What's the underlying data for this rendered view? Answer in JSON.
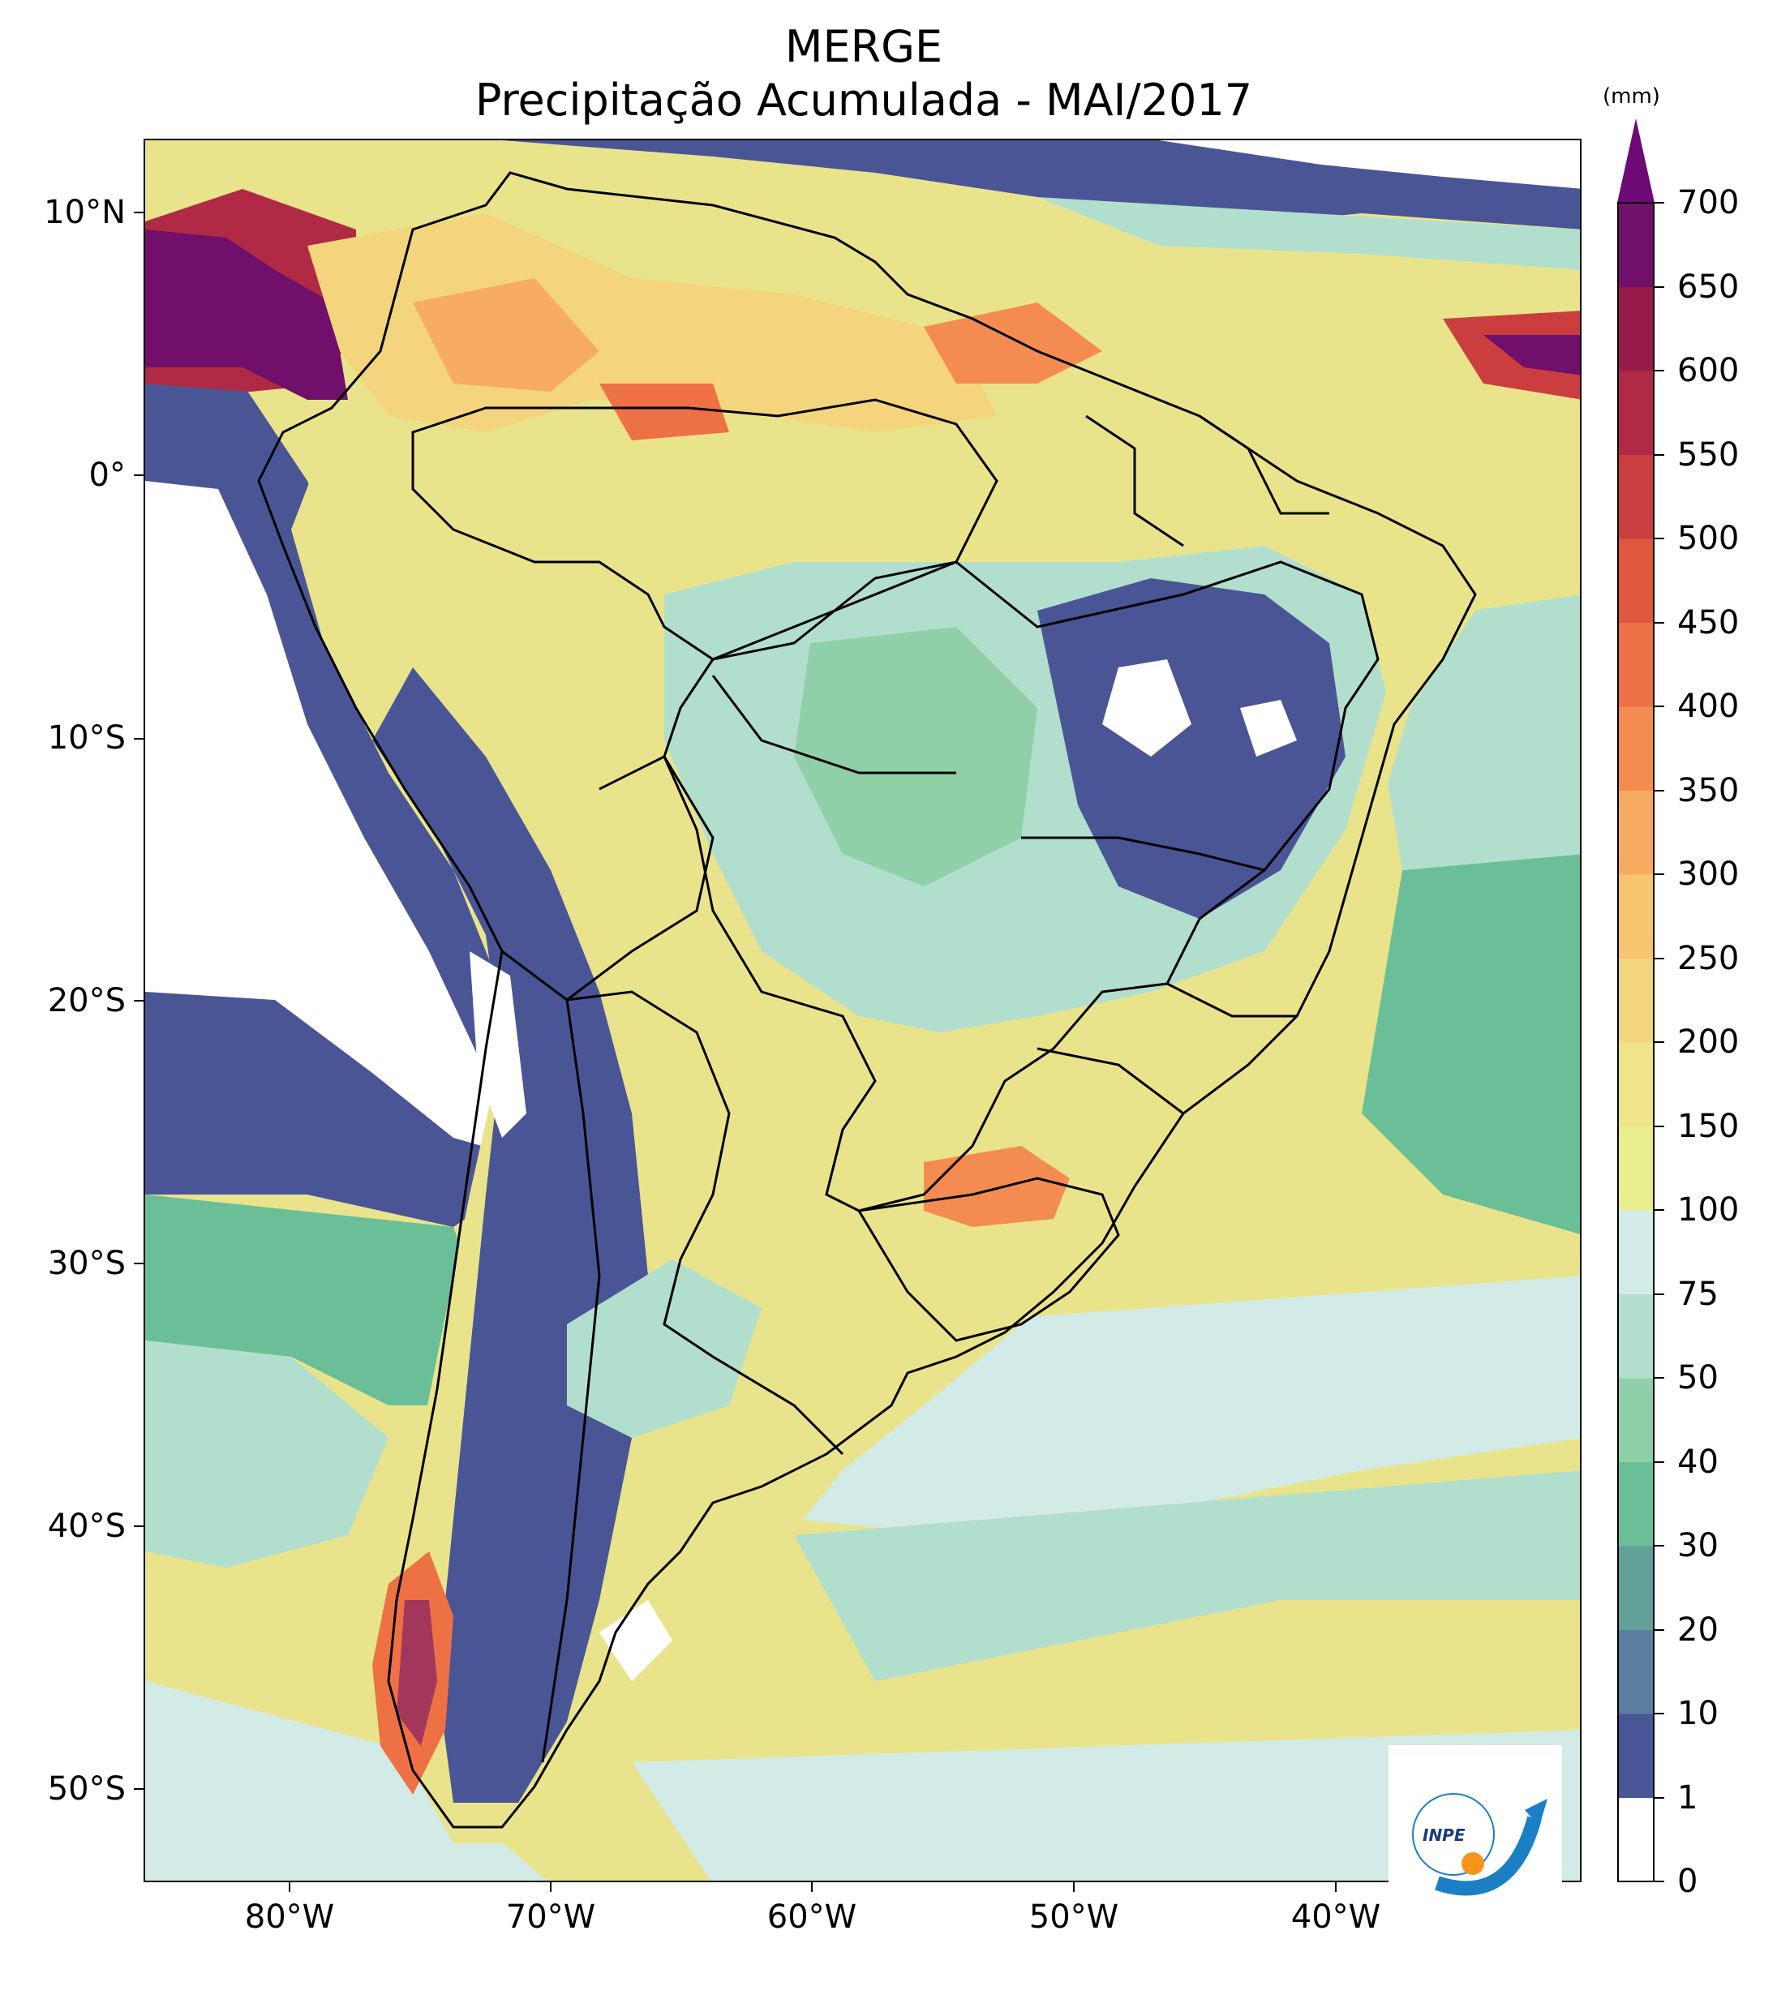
{
  "title": {
    "line1": "MERGE",
    "line2": "Precipitação Acumulada - MAI/2017"
  },
  "map": {
    "lat_labels": [
      "10°N",
      "0°",
      "10°S",
      "20°S",
      "30°S",
      "40°S",
      "50°S"
    ],
    "lon_labels": [
      "80°W",
      "70°W",
      "60°W",
      "50°W",
      "40°W"
    ],
    "extent": {
      "lon_min": -85,
      "lon_max": -30,
      "lat_min": -56,
      "lat_max": 13
    }
  },
  "colorbar": {
    "unit": "(mm)",
    "levels": [
      "0",
      "1",
      "10",
      "20",
      "30",
      "40",
      "50",
      "75",
      "100",
      "150",
      "200",
      "250",
      "300",
      "350",
      "400",
      "450",
      "500",
      "550",
      "600",
      "650",
      "700"
    ],
    "colors": [
      "#ffffff",
      "#4a5596",
      "#5a7ea0",
      "#62a09a",
      "#6bbf98",
      "#8fd0a9",
      "#b2dfcd",
      "#d3ebe6",
      "#e9ef8e",
      "#efe48a",
      "#f4d57e",
      "#f7c46f",
      "#f8ac61",
      "#f48c52",
      "#ee7045",
      "#e0573f",
      "#cb3e40",
      "#b02a45",
      "#961b4b",
      "#70106a"
    ],
    "extend_color": "#6e0a76"
  },
  "logo": {
    "text": "INPE"
  }
}
